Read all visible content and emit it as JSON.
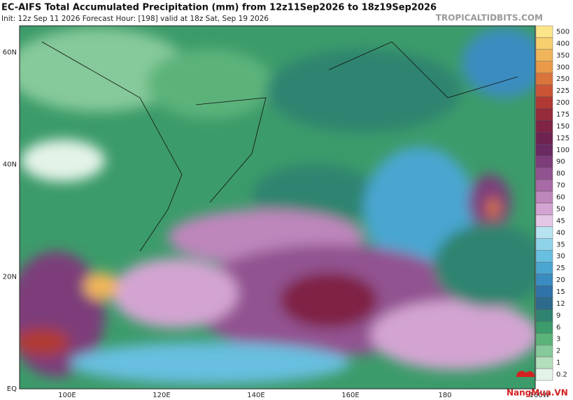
{
  "header": {
    "title": "EC-AIFS Total Accumulated Precipitation (mm) from 12z11Sep2026 to 18z19Sep2026",
    "subtitle": "Init: 12z Sep 11 2026   Forecast Hour: [198]   valid at 18z Sat, Sep 19 2026",
    "site": "TROPICALTIDBITS.COM"
  },
  "map": {
    "lat_labels": [
      "60N",
      "40N",
      "20N",
      "EQ"
    ],
    "lon_labels": [
      "100E",
      "120E",
      "140E",
      "160E",
      "180",
      "160W"
    ]
  },
  "colorbar": {
    "levels": [
      {
        "label": "500",
        "color": "#fde68a"
      },
      {
        "label": "400",
        "color": "#f7cf6e"
      },
      {
        "label": "350",
        "color": "#f0b55a"
      },
      {
        "label": "300",
        "color": "#e89a4a"
      },
      {
        "label": "250",
        "color": "#d9753c"
      },
      {
        "label": "225",
        "color": "#c95536"
      },
      {
        "label": "200",
        "color": "#b03a33"
      },
      {
        "label": "175",
        "color": "#952b3b"
      },
      {
        "label": "150",
        "color": "#7f2445"
      },
      {
        "label": "125",
        "color": "#6e2250"
      },
      {
        "label": "100",
        "color": "#6a2a62"
      },
      {
        "label": "90",
        "color": "#7d3c7a"
      },
      {
        "label": "80",
        "color": "#925391"
      },
      {
        "label": "70",
        "color": "#a86aa6"
      },
      {
        "label": "60",
        "color": "#be86bb"
      },
      {
        "label": "50",
        "color": "#d3a4d1"
      },
      {
        "label": "45",
        "color": "#e6c6e6"
      },
      {
        "label": "40",
        "color": "#b8e4f2"
      },
      {
        "label": "35",
        "color": "#8fd3ea"
      },
      {
        "label": "30",
        "color": "#68bfe0"
      },
      {
        "label": "25",
        "color": "#4aa6d0"
      },
      {
        "label": "20",
        "color": "#3a8cc0"
      },
      {
        "label": "15",
        "color": "#2f73a8"
      },
      {
        "label": "12",
        "color": "#2d6a8c"
      },
      {
        "label": "9",
        "color": "#2e8470"
      },
      {
        "label": "6",
        "color": "#3c9b6a"
      },
      {
        "label": "3",
        "color": "#5bb37a"
      },
      {
        "label": "2",
        "color": "#86c99a"
      },
      {
        "label": "1",
        "color": "#b4dfbe"
      },
      {
        "label": "0.2",
        "color": "#e4f3e8"
      }
    ]
  },
  "watermark": "NangMua.VN"
}
